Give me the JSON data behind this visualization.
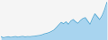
{
  "values": [
    100,
    95,
    98,
    100,
    97,
    99,
    101,
    98,
    100,
    102,
    99,
    101,
    100,
    102,
    103,
    105,
    107,
    110,
    115,
    118,
    122,
    128,
    135,
    148,
    162,
    175,
    168,
    178,
    165,
    182,
    190,
    178,
    170,
    185,
    195,
    200,
    182,
    165,
    195,
    220,
    205,
    190,
    210,
    240,
    280
  ],
  "line_color": "#5bacd6",
  "fill_color": "#a8d4ef",
  "background_color": "#f5f5f5",
  "linewidth": 0.7,
  "ylim_min": 85,
  "ylim_max": 290
}
